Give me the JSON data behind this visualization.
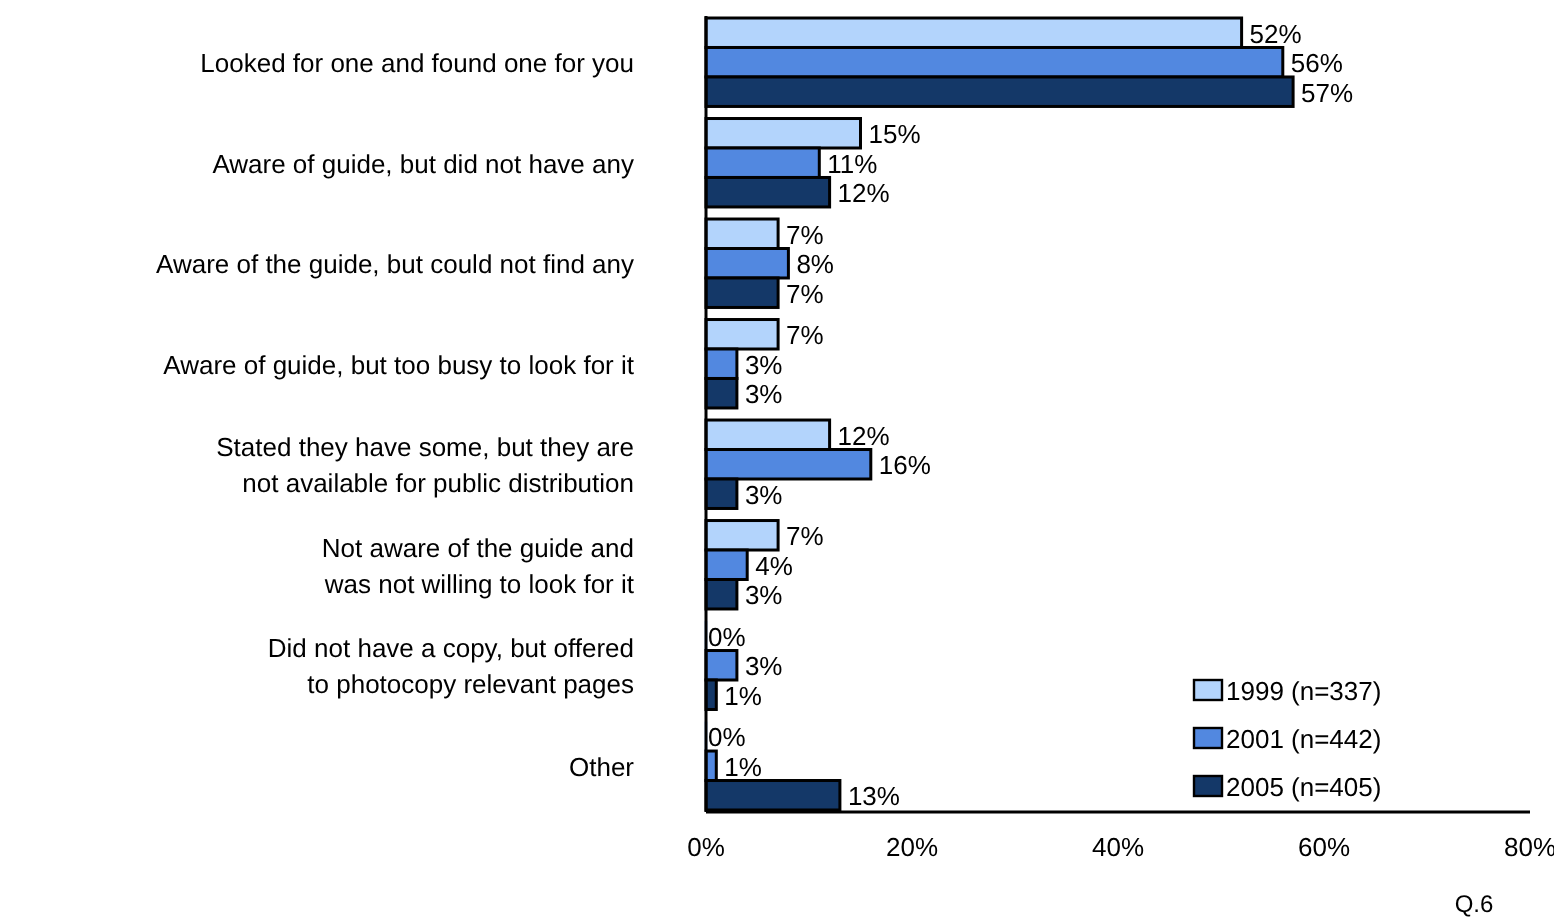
{
  "chart_data": {
    "type": "bar",
    "orientation": "horizontal",
    "categories": [
      "Looked for one and found one for you",
      "Aware of guide, but did not have any",
      "Aware of the guide, but could not find any",
      "Aware of guide, but too busy to look for it",
      "Stated they have some, but they are\nnot available for public distribution",
      "Not aware of the guide and\nwas not willing to look for it",
      "Did not have a copy, but offered\nto photocopy relevant pages",
      "Other"
    ],
    "series": [
      {
        "name": "1999 (n=337)",
        "color": "#b3d4fc",
        "values": [
          52,
          15,
          7,
          7,
          12,
          7,
          0,
          0
        ],
        "value_labels": [
          "52%",
          "15%",
          "7%",
          "7%",
          "12%",
          "7%",
          "0%",
          "0%"
        ]
      },
      {
        "name": "2001 (n=442)",
        "color": "#5288e0",
        "values": [
          56,
          11,
          8,
          3,
          16,
          4,
          3,
          1
        ],
        "value_labels": [
          "56%",
          "11%",
          "8%",
          "3%",
          "16%",
          "4%",
          "3%",
          "1%"
        ]
      },
      {
        "name": "2005 (n=405)",
        "color": "#143868",
        "values": [
          57,
          12,
          7,
          3,
          3,
          3,
          1,
          13
        ],
        "value_labels": [
          "57%",
          "12%",
          "7%",
          "3%",
          "3%",
          "3%",
          "1%",
          "13%"
        ]
      }
    ],
    "xlim": [
      0,
      80
    ],
    "xticks": [
      {
        "value": 0,
        "label": "0%"
      },
      {
        "value": 20,
        "label": "20%"
      },
      {
        "value": 40,
        "label": "40%"
      },
      {
        "value": 60,
        "label": "60%"
      },
      {
        "value": 80,
        "label": "80%"
      }
    ],
    "legend": "bottom right",
    "grid": false,
    "annotations": [
      "Q.6"
    ]
  }
}
